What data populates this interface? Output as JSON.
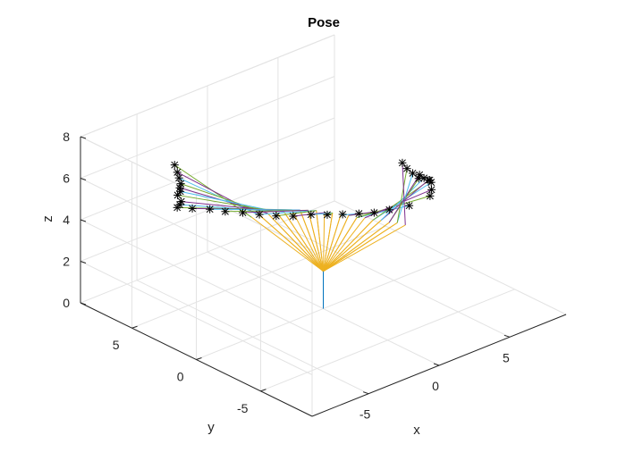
{
  "chart_data": {
    "type": "line3d",
    "title": "Pose",
    "xlabel": "x",
    "ylabel": "y",
    "zlabel": "z",
    "xlim": [
      -9,
      9
    ],
    "ylim": [
      -9,
      9
    ],
    "zlim": [
      0,
      8
    ],
    "xticks": [
      -5,
      0,
      5
    ],
    "yticks": [
      -5,
      0,
      5
    ],
    "zticks": [
      0,
      2,
      4,
      6,
      8
    ],
    "xtick_labels": [
      "-5",
      "0",
      "5"
    ],
    "ytick_labels": [
      "-5",
      "0",
      "5"
    ],
    "ztick_labels": [
      "0",
      "2",
      "4",
      "6",
      "8"
    ],
    "grid": true,
    "colors": [
      "#0072BD",
      "#D95319",
      "#EDB120",
      "#7E2F8E",
      "#77AC30",
      "#4DBEEE"
    ],
    "marker": "asterisk",
    "base": [
      0,
      0,
      0
    ],
    "shoulder": [
      0,
      0,
      1.8
    ],
    "elbows": [
      [
        -1.8,
        3.6,
        3.8
      ],
      [
        -1.5,
        3.3,
        3.9
      ],
      [
        -1.2,
        3.0,
        4.0
      ],
      [
        -0.9,
        2.7,
        4.1
      ],
      [
        -0.6,
        2.4,
        4.1
      ],
      [
        -0.3,
        2.1,
        4.2
      ],
      [
        0.0,
        1.8,
        4.2
      ],
      [
        0.3,
        1.5,
        4.2
      ],
      [
        0.6,
        1.2,
        4.2
      ],
      [
        0.9,
        0.9,
        4.1
      ],
      [
        1.2,
        0.6,
        4.1
      ],
      [
        1.5,
        0.3,
        4.0
      ],
      [
        1.8,
        0.0,
        4.0
      ],
      [
        2.1,
        -0.3,
        3.9
      ],
      [
        2.4,
        -0.6,
        3.9
      ],
      [
        2.7,
        -0.9,
        3.8
      ],
      [
        3.0,
        -1.2,
        3.8
      ],
      [
        3.3,
        -1.5,
        3.7
      ],
      [
        3.6,
        -1.8,
        3.7
      ],
      [
        3.9,
        -2.1,
        3.6
      ]
    ],
    "end_effector": [
      [
        -5.02,
        6.05,
        6.45
      ],
      [
        -4.74,
        6.15,
        5.99
      ],
      [
        -4.41,
        6.38,
        5.56
      ],
      [
        -3.99,
        6.7,
        5.07
      ],
      [
        -3.6,
        7.21,
        4.61
      ],
      [
        -3.17,
        7.63,
        4.19
      ],
      [
        -2.81,
        8.24,
        3.73
      ],
      [
        -2.55,
        8.24,
        3.35
      ],
      [
        -2.43,
        8.49,
        3.09
      ],
      [
        -2.41,
        8.71,
        2.88
      ],
      [
        -1.73,
        8.28,
        2.78
      ],
      [
        -0.99,
        7.73,
        2.71
      ],
      [
        -0.19,
        7.41,
        2.48
      ],
      [
        0.65,
        6.97,
        2.33
      ],
      [
        1.4,
        6.5,
        2.18
      ],
      [
        2.17,
        6.04,
        2.04
      ],
      [
        2.91,
        5.53,
        1.98
      ],
      [
        3.6,
        4.9,
        2.06
      ],
      [
        4.14,
        4.23,
        2.11
      ],
      [
        4.57,
        3.51,
        2.23
      ],
      [
        5.05,
        2.77,
        2.36
      ],
      [
        5.42,
        1.99,
        2.54
      ],
      [
        6.01,
        1.46,
        2.68
      ],
      [
        6.74,
        0.71,
        2.91
      ],
      [
        7.54,
        -0.03,
        3.38
      ],
      [
        7.49,
        -0.2,
        3.75
      ],
      [
        7.33,
        -0.35,
        4.19
      ],
      [
        7.13,
        -0.46,
        4.39
      ],
      [
        6.92,
        -0.58,
        4.48
      ],
      [
        6.58,
        -0.61,
        4.68
      ],
      [
        6.24,
        -0.57,
        4.74
      ],
      [
        6.2,
        -0.68,
        4.96
      ],
      [
        5.78,
        -0.61,
        5.13
      ],
      [
        5.4,
        -0.58,
        5.45
      ],
      [
        5.13,
        -0.52,
        5.78
      ]
    ]
  }
}
